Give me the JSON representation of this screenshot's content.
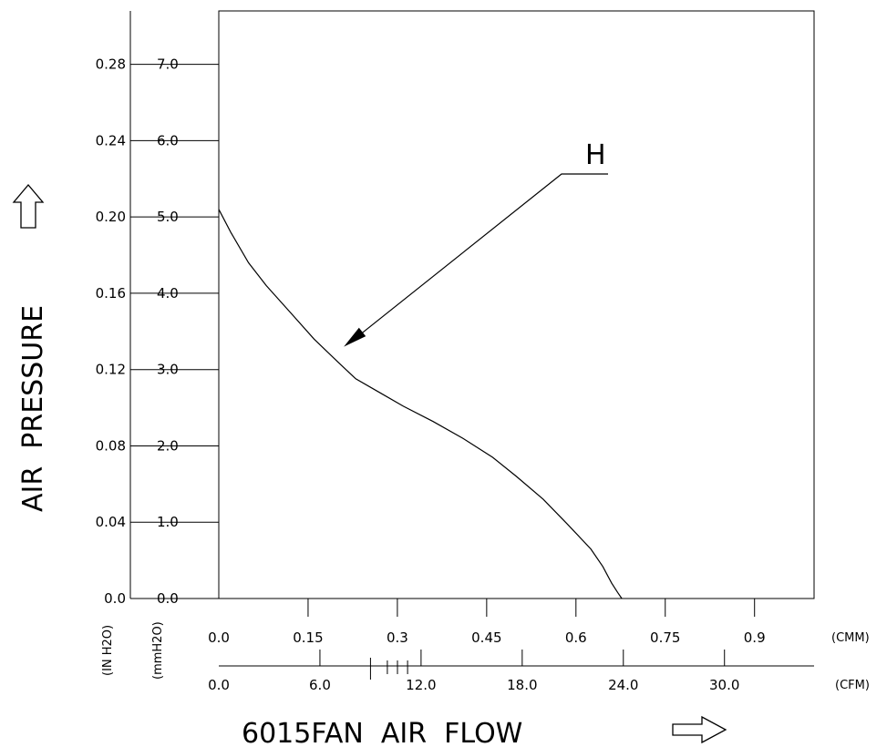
{
  "chart_data": {
    "type": "line",
    "title": "",
    "xlabel": "6015FAN  AIR  FLOW",
    "ylabel": "AIR  PRESSURE",
    "x_unit_primary": "(CMM)",
    "x_unit_secondary": "(CFM)",
    "y_unit_primary": "(mmH2O)",
    "y_unit_secondary": "(IN H2O)",
    "xlim_cmm": [
      0,
      1.0
    ],
    "ylim_mmh2o": [
      0,
      7.7
    ],
    "x_ticks_cmm": [
      "0.0",
      "0.15",
      "0.3",
      "0.45",
      "0.6",
      "0.75",
      "0.9"
    ],
    "x_ticks_cfm": [
      "0.0",
      "6.0",
      "12.0",
      "18.0",
      "24.0",
      "30.0"
    ],
    "y_ticks_mmh2o": [
      "0.0",
      "1.0",
      "2.0",
      "3.0",
      "4.0",
      "5.0",
      "6.0",
      "7.0"
    ],
    "y_ticks_inh2o": [
      "0.0",
      "0.04",
      "0.08",
      "0.12",
      "0.16",
      "0.20",
      "0.24",
      "0.28"
    ],
    "grid": false,
    "series": [
      {
        "name": "H",
        "x": [
          0.0,
          0.02,
          0.05,
          0.08,
          0.12,
          0.16,
          0.2,
          0.23,
          0.27,
          0.31,
          0.36,
          0.41,
          0.46,
          0.5,
          0.545,
          0.585,
          0.625,
          0.645,
          0.66,
          0.67,
          0.677
        ],
        "y": [
          5.1,
          4.8,
          4.4,
          4.1,
          3.75,
          3.4,
          3.1,
          2.88,
          2.7,
          2.52,
          2.32,
          2.1,
          1.85,
          1.6,
          1.3,
          0.98,
          0.65,
          0.42,
          0.2,
          0.08,
          0.0
        ]
      }
    ],
    "annotations": [
      {
        "text": "H",
        "points_to": {
          "x": 0.21,
          "y": 3.3
        }
      }
    ]
  }
}
